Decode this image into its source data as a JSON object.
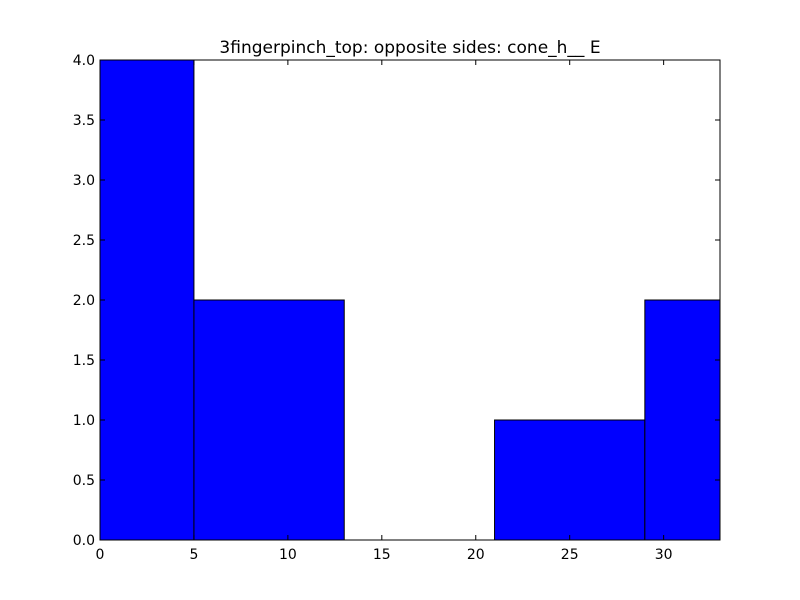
{
  "chart_data": {
    "type": "bar",
    "title": "3fingerpinch_top: opposite sides: cone_h__ E",
    "xlabel": "",
    "ylabel": "",
    "xlim": [
      0,
      33
    ],
    "ylim": [
      0,
      4
    ],
    "grid": false,
    "bar_color": "#0000ff",
    "edge_color": "#000000",
    "bins": [
      {
        "x0": 0,
        "x1": 5,
        "value": 4
      },
      {
        "x0": 5,
        "x1": 13,
        "value": 2
      },
      {
        "x0": 13,
        "x1": 21,
        "value": 0
      },
      {
        "x0": 21,
        "x1": 29,
        "value": 1
      },
      {
        "x0": 29,
        "x1": 33,
        "value": 2
      }
    ],
    "x_ticks": [
      {
        "value": 0,
        "label": "0"
      },
      {
        "value": 5,
        "label": "5"
      },
      {
        "value": 10,
        "label": "10"
      },
      {
        "value": 15,
        "label": "15"
      },
      {
        "value": 20,
        "label": "20"
      },
      {
        "value": 25,
        "label": "25"
      },
      {
        "value": 30,
        "label": "30"
      }
    ],
    "y_ticks": [
      {
        "value": 0,
        "label": "0.0"
      },
      {
        "value": 0.5,
        "label": "0.5"
      },
      {
        "value": 1,
        "label": "1.0"
      },
      {
        "value": 1.5,
        "label": "1.5"
      },
      {
        "value": 2,
        "label": "2.0"
      },
      {
        "value": 2.5,
        "label": "2.5"
      },
      {
        "value": 3,
        "label": "3.0"
      },
      {
        "value": 3.5,
        "label": "3.5"
      },
      {
        "value": 4,
        "label": "4.0"
      }
    ]
  }
}
